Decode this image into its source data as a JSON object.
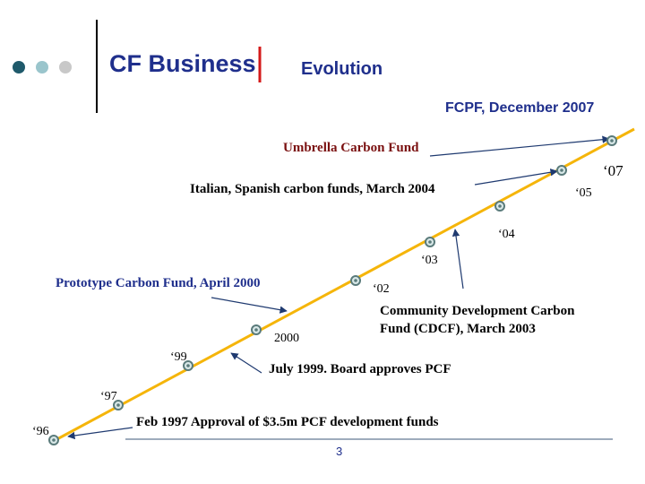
{
  "header": {
    "title": "CF Business",
    "title_suffix": "Evolution",
    "subtitle": "FCPF, December 2007"
  },
  "events": {
    "umbrella": "Umbrella Carbon Fund",
    "italian_spanish": "Italian, Spanish carbon funds, March 2004",
    "prototype": "Prototype Carbon Fund, April 2000",
    "cdcf_line1": "Community Development Carbon",
    "cdcf_line2": "Fund (CDCF), March 2003",
    "board_pcf": "July 1999. Board approves PCF",
    "feb1997": "Feb 1997 Approval of $3.5m PCF development funds"
  },
  "years": {
    "y96": "‘96",
    "y97": "‘97",
    "y99": "‘99",
    "y2000": "2000",
    "y02": "‘02",
    "y03": "‘03",
    "y04": "‘04",
    "y05": "‘05",
    "y07": "‘07"
  },
  "footer": {
    "page_number": "3"
  },
  "colors": {
    "accent_dark": "#1f5a6b",
    "accent_light": "#9ac5cc",
    "accent_grey": "#c8c8c8",
    "timeline": "#f5b50a",
    "title_blue": "#1f2f8c",
    "umbrella_red": "#7a1010",
    "marker_red": "#d41a1a"
  }
}
